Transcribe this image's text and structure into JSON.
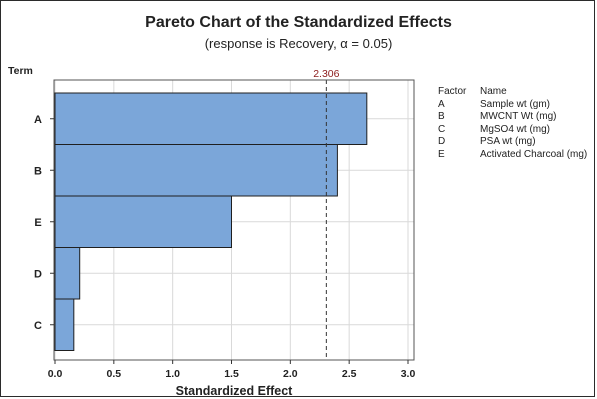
{
  "title": "Pareto Chart of the Standardized Effects",
  "subtitle": "(response is Recovery, α = 0.05)",
  "chart_data": {
    "type": "bar",
    "orientation": "horizontal",
    "title": "Pareto Chart of the Standardized Effects",
    "subtitle": "(response is Recovery, α = 0.05)",
    "xlabel": "Standardized Effect",
    "ylabel": "Term",
    "categories": [
      "A",
      "B",
      "E",
      "D",
      "C"
    ],
    "values": [
      2.65,
      2.4,
      1.5,
      0.21,
      0.16
    ],
    "xlim": [
      0,
      3.0
    ],
    "xticks": [
      "0.0",
      "0.5",
      "1.0",
      "1.5",
      "2.0",
      "2.5",
      "3.0"
    ],
    "reference_line": {
      "value": 2.306,
      "label": "2.306"
    },
    "grid": true,
    "legend_position": "right"
  },
  "legend": {
    "factor_header": "Factor",
    "name_header": "Name",
    "entries": [
      {
        "factor": "A",
        "name": "Sample wt (gm)"
      },
      {
        "factor": "B",
        "name": "MWCNT Wt (mg)"
      },
      {
        "factor": "C",
        "name": "MgSO4 wt (mg)"
      },
      {
        "factor": "D",
        "name": "PSA wt (mg)"
      },
      {
        "factor": "E",
        "name": "Activated Charcoal (mg)"
      }
    ]
  },
  "colors": {
    "bar_fill": "#7ba6d9",
    "bar_stroke": "#1f1f1f",
    "grid": "#d9d9d9",
    "reference_line": "#333333",
    "reference_label": "#8b1a1a"
  }
}
